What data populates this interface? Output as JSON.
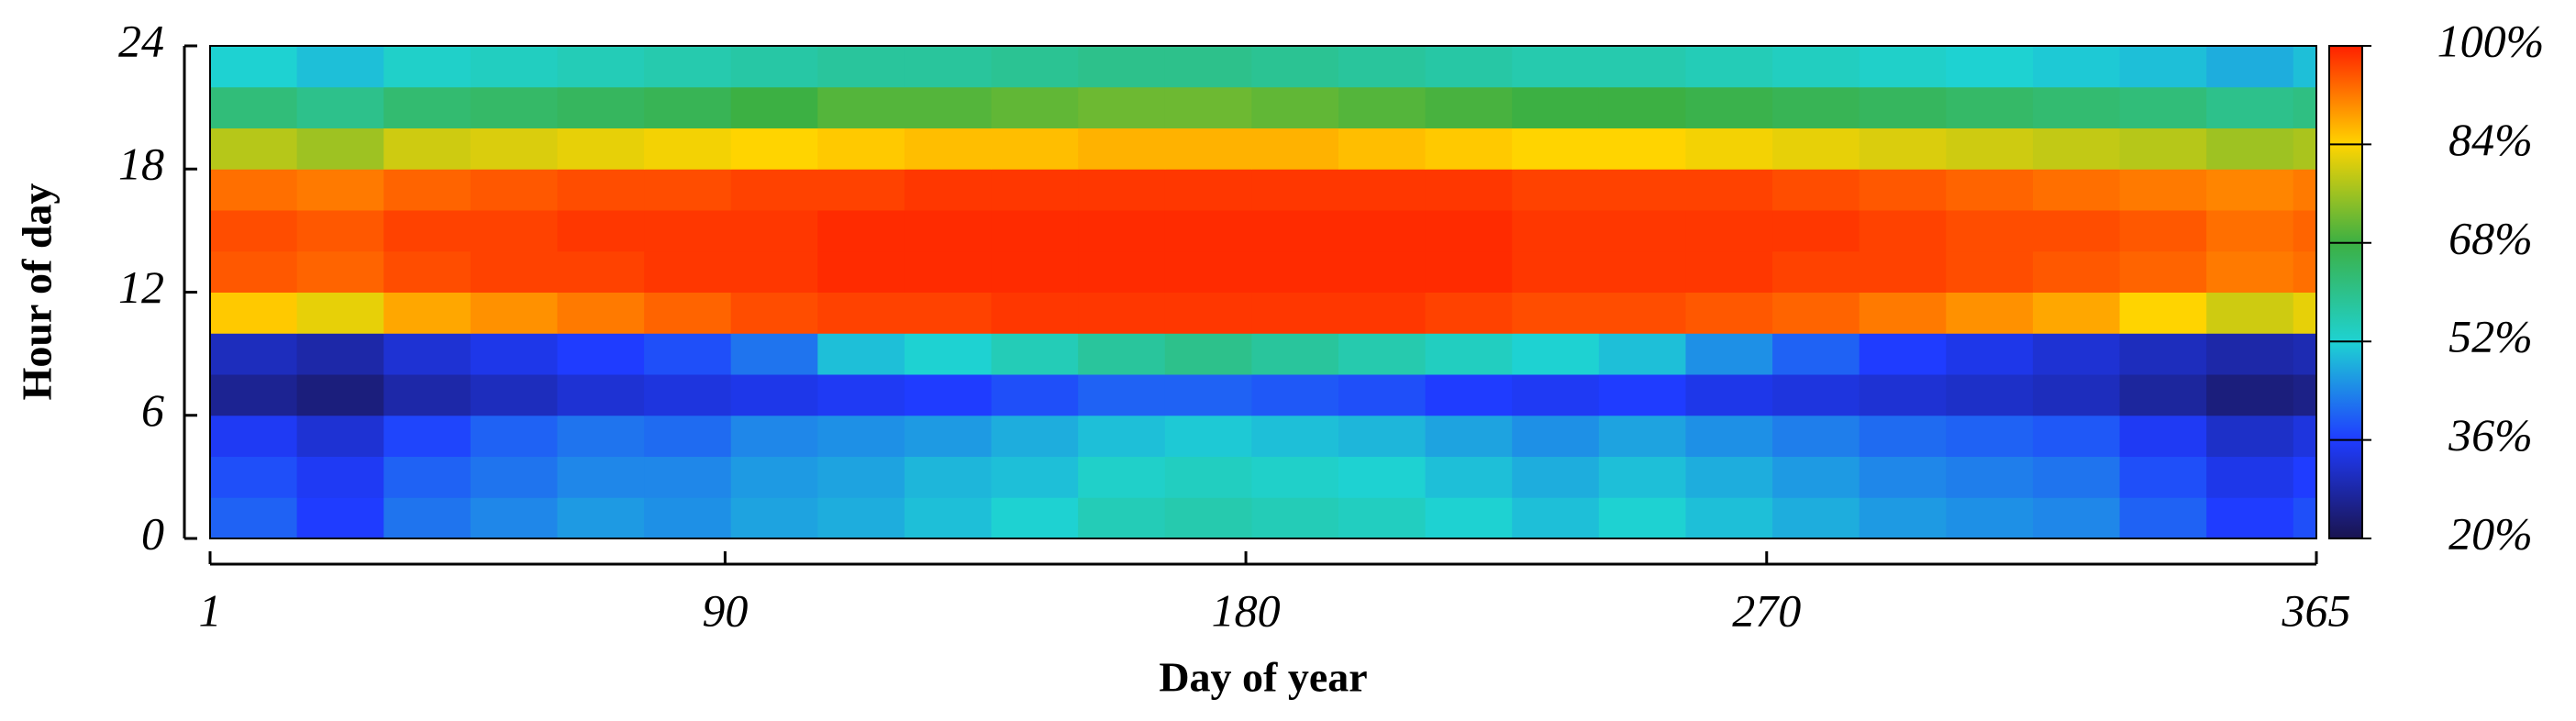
{
  "chart_data": {
    "type": "heatmap",
    "x_label": "Day of year",
    "y_label": "Hour of day",
    "x": [
      1,
      16,
      31,
      46,
      61,
      76,
      91,
      106,
      121,
      136,
      151,
      166,
      181,
      196,
      211,
      226,
      241,
      256,
      271,
      286,
      301,
      316,
      331,
      346,
      361
    ],
    "y": [
      0,
      2,
      4,
      6,
      8,
      10,
      12,
      14,
      16,
      18,
      20,
      22
    ],
    "z": [
      [
        40,
        36,
        42,
        44,
        46,
        45,
        47,
        48,
        50,
        52,
        55,
        56,
        55,
        54,
        52,
        50,
        52,
        50,
        48,
        46,
        45,
        44,
        40,
        36,
        38
      ],
      [
        38,
        35,
        40,
        42,
        44,
        44,
        46,
        47,
        49,
        50,
        53,
        54,
        53,
        52,
        50,
        48,
        50,
        48,
        46,
        44,
        43,
        42,
        38,
        34,
        36
      ],
      [
        35,
        32,
        37,
        40,
        42,
        41,
        44,
        45,
        46,
        48,
        50,
        51,
        50,
        49,
        47,
        45,
        47,
        45,
        43,
        41,
        40,
        39,
        35,
        31,
        33
      ],
      [
        26,
        24,
        28,
        30,
        32,
        33,
        34,
        35,
        36,
        38,
        40,
        40,
        39,
        38,
        36,
        35,
        36,
        34,
        33,
        32,
        31,
        30,
        27,
        24,
        25
      ],
      [
        30,
        28,
        32,
        34,
        36,
        38,
        42,
        50,
        52,
        55,
        58,
        60,
        58,
        56,
        54,
        52,
        50,
        45,
        40,
        36,
        34,
        32,
        30,
        28,
        29
      ],
      [
        85,
        82,
        88,
        90,
        92,
        94,
        96,
        97,
        97,
        98,
        98,
        98,
        98,
        98,
        97,
        96,
        96,
        95,
        94,
        92,
        90,
        88,
        84,
        80,
        82
      ],
      [
        95,
        94,
        96,
        97,
        97,
        98,
        98,
        99,
        99,
        99,
        99,
        99,
        99,
        99,
        99,
        98,
        98,
        98,
        97,
        97,
        96,
        95,
        94,
        92,
        93
      ],
      [
        96,
        95,
        97,
        97,
        98,
        98,
        98,
        99,
        99,
        99,
        99,
        99,
        99,
        99,
        99,
        98,
        98,
        98,
        98,
        97,
        96,
        96,
        95,
        93,
        94
      ],
      [
        93,
        92,
        94,
        95,
        96,
        96,
        97,
        97,
        98,
        98,
        98,
        98,
        98,
        98,
        98,
        97,
        97,
        97,
        96,
        95,
        94,
        93,
        92,
        91,
        92
      ],
      [
        78,
        76,
        80,
        81,
        82,
        83,
        84,
        85,
        86,
        86,
        87,
        87,
        87,
        86,
        85,
        84,
        84,
        83,
        82,
        81,
        80,
        79,
        78,
        76,
        77
      ],
      [
        62,
        60,
        63,
        64,
        65,
        66,
        68,
        70,
        70,
        71,
        72,
        72,
        71,
        70,
        69,
        68,
        68,
        67,
        66,
        65,
        64,
        63,
        62,
        60,
        61
      ],
      [
        52,
        50,
        53,
        54,
        55,
        56,
        57,
        58,
        58,
        59,
        60,
        60,
        59,
        58,
        57,
        56,
        56,
        55,
        54,
        53,
        52,
        51,
        50,
        48,
        50
      ]
    ],
    "xlim": [
      1,
      365
    ],
    "xticks": [
      1,
      90,
      180,
      270,
      365
    ],
    "ylim": [
      0,
      24
    ],
    "yticks": [
      0,
      6,
      12,
      18,
      24
    ],
    "clim": [
      20,
      100
    ],
    "cticks": [
      {
        "value": 20,
        "label": "20%"
      },
      {
        "value": 36,
        "label": "36%"
      },
      {
        "value": 52,
        "label": "52%"
      },
      {
        "value": 68,
        "label": "68%"
      },
      {
        "value": 84,
        "label": "84%"
      },
      {
        "value": 100,
        "label": "100%"
      }
    ],
    "colormap": [
      "#1a1450",
      "#1f3cff",
      "#1ed2d2",
      "#3cb043",
      "#ffd400",
      "#ff2000"
    ]
  }
}
